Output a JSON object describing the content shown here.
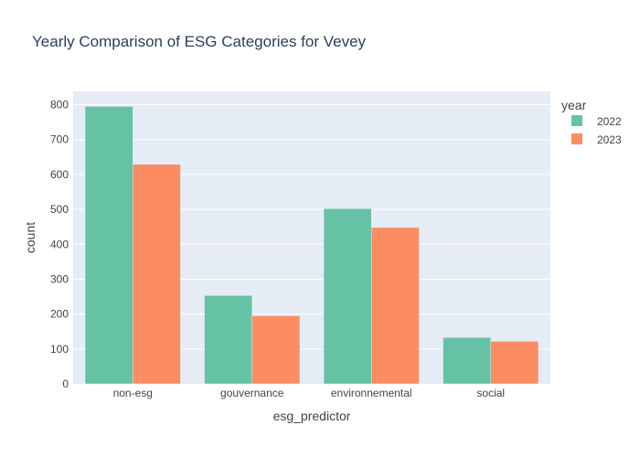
{
  "chart_data": {
    "type": "bar",
    "title": "Yearly Comparison of ESG Categories for Vevey",
    "xlabel": "esg_predictor",
    "ylabel": "count",
    "categories": [
      "non-esg",
      "gouvernance",
      "environnemental",
      "social"
    ],
    "series": [
      {
        "name": "2022",
        "values": [
          795,
          253,
          502,
          133
        ]
      },
      {
        "name": "2023",
        "values": [
          629,
          195,
          448,
          122
        ]
      }
    ],
    "ylim": [
      0,
      838
    ],
    "yticks": [
      0,
      100,
      200,
      300,
      400,
      500,
      600,
      700,
      800
    ],
    "grid": true,
    "legend": {
      "title": "year",
      "placement": "top-right"
    },
    "colors": {
      "2022": "#66c2a5",
      "2023": "#fc8d62",
      "plot_bg": "#e5ecf6",
      "text": "#444444",
      "title": "#2a3f5f"
    }
  }
}
